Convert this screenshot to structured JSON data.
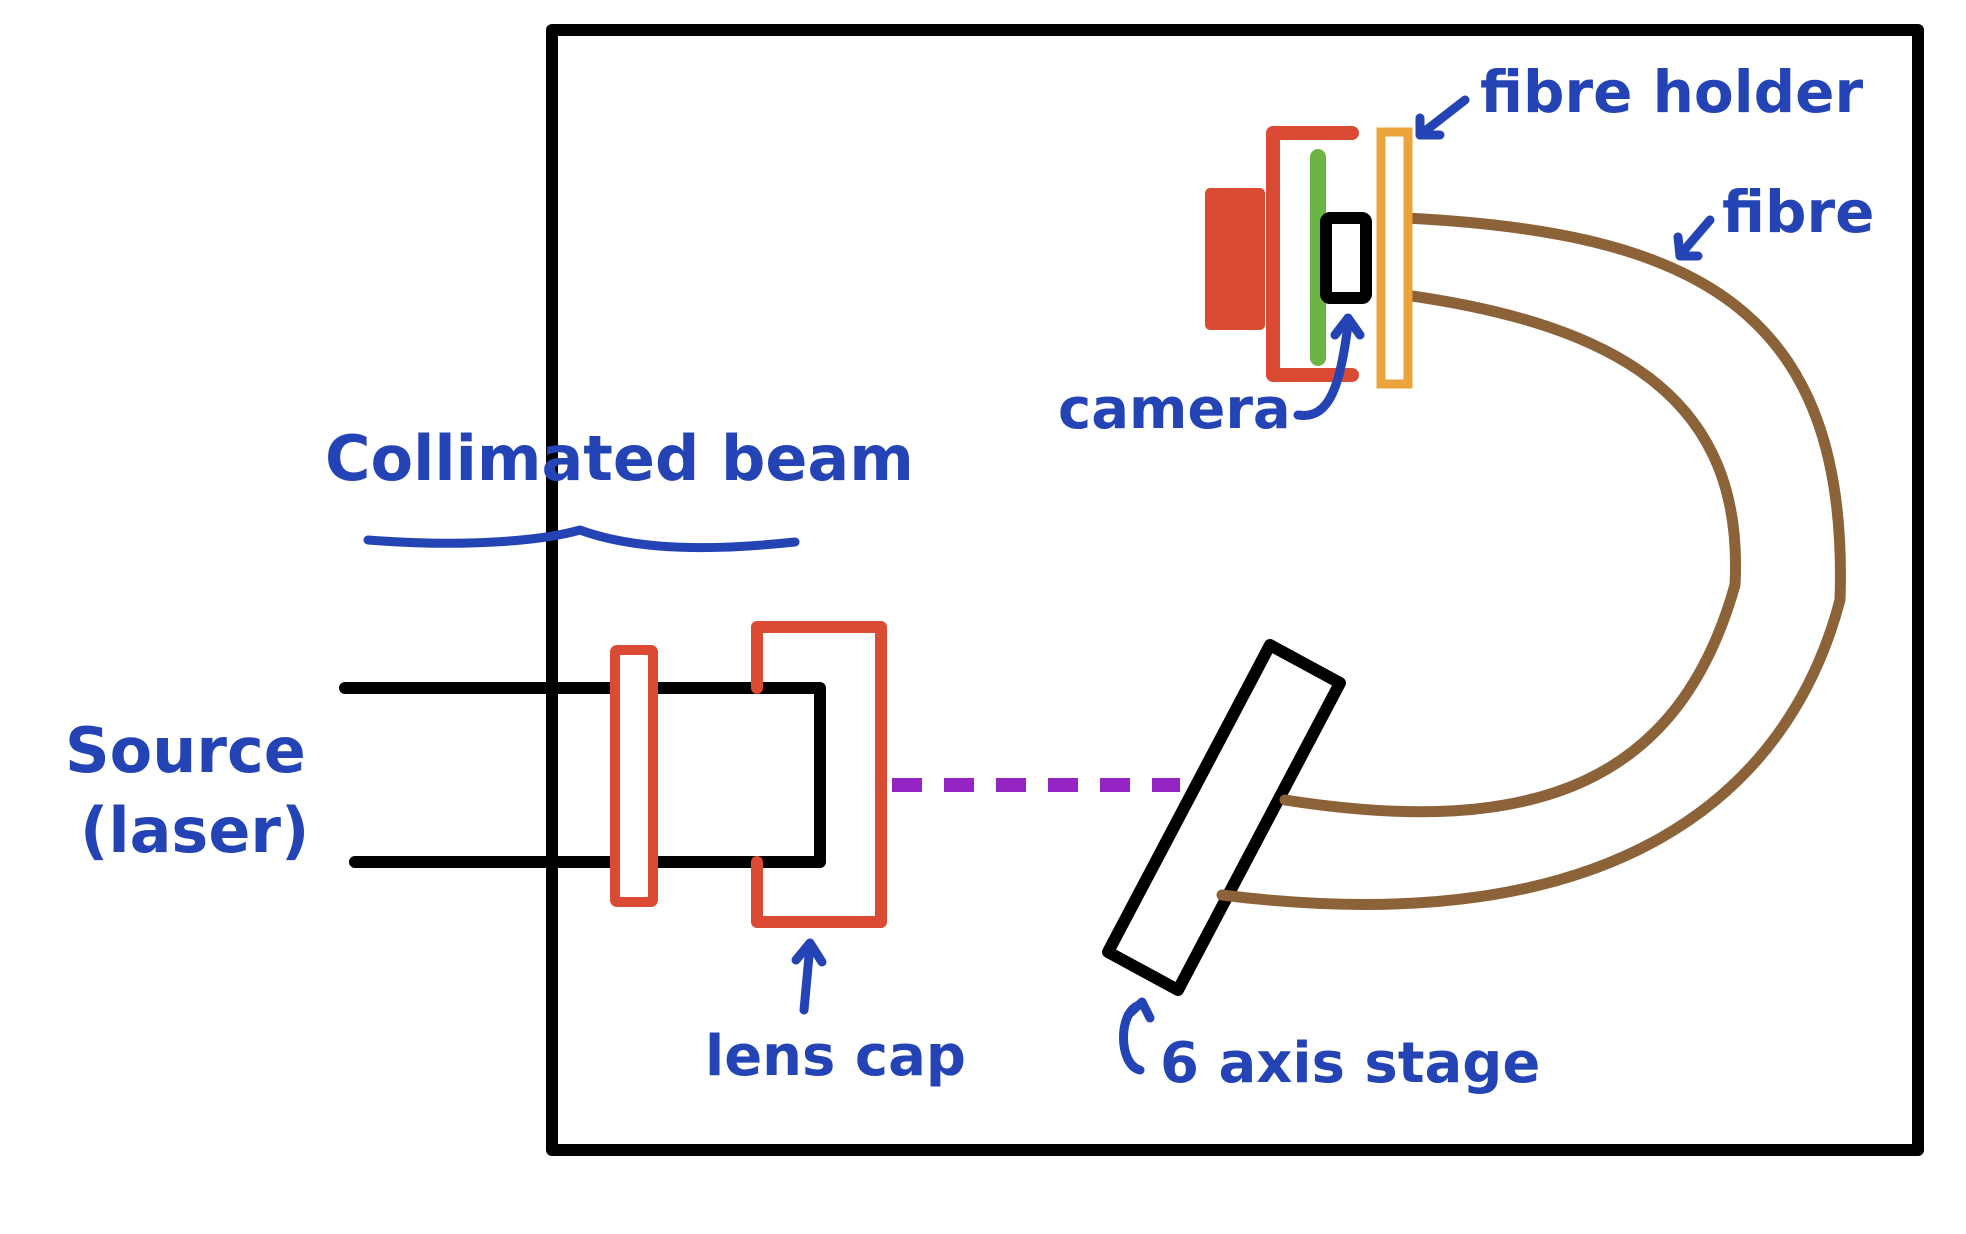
{
  "colors": {
    "ink": "#000000",
    "annotation": "#2443b5",
    "lens_cap": "#db4a33",
    "camera": "#db4a33",
    "sensor": "#6cb544",
    "fibre_holder": "#eba33c",
    "fibre": "#8c6239",
    "beam": "#9524c4"
  },
  "labels": {
    "fibre_holder": "fibre holder",
    "fibre": "fibre",
    "camera": "camera",
    "collimated_beam": "Collimated beam",
    "source_line1": "Source",
    "source_line2": "(laser)",
    "lens_cap": "lens cap",
    "six_axis_stage": "6 axis stage"
  }
}
